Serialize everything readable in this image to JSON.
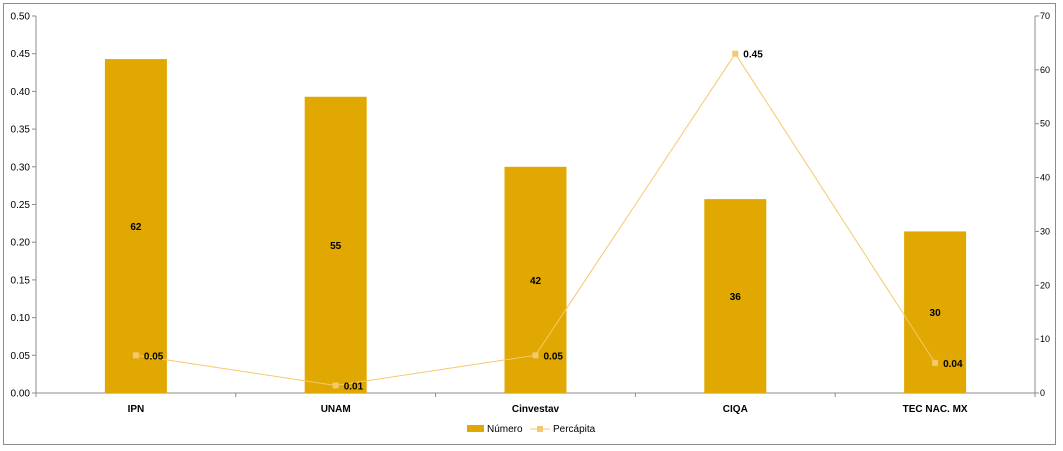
{
  "chart_data": {
    "type": "bar",
    "categories": [
      "IPN",
      "UNAM",
      "Cinvestav",
      "CIQA",
      "TEC NAC. MX"
    ],
    "series": [
      {
        "name": "Número",
        "type": "bar",
        "axis": "right",
        "values": [
          62,
          55,
          42,
          36,
          30
        ],
        "color": "#E0A800"
      },
      {
        "name": "Percápita",
        "type": "line",
        "axis": "left",
        "values": [
          0.05,
          0.01,
          0.05,
          0.45,
          0.04
        ],
        "color": "#F5C86E"
      }
    ],
    "bar_labels": [
      "62",
      "55",
      "42",
      "36",
      "30"
    ],
    "line_labels": [
      "0.05",
      "0.01",
      "0.05",
      "0.45",
      "0.04"
    ],
    "y_left": {
      "ylim": [
        0,
        0.5
      ],
      "ticks": [
        0,
        0.05,
        0.1,
        0.15,
        0.2,
        0.25,
        0.3,
        0.35,
        0.4,
        0.45,
        0.5
      ],
      "tick_labels": [
        "0.00",
        "0.05",
        "0.10",
        "0.15",
        "0.20",
        "0.25",
        "0.30",
        "0.35",
        "0.40",
        "0.45",
        "0.50"
      ]
    },
    "y_right": {
      "ylim": [
        0,
        70
      ],
      "ticks": [
        0,
        10,
        20,
        30,
        40,
        50,
        60,
        70
      ],
      "tick_labels": [
        "0",
        "10",
        "20",
        "30",
        "40",
        "50",
        "60",
        "70"
      ]
    },
    "grid": false,
    "legend": {
      "position": "bottom",
      "entries": [
        "Número",
        "Percápita"
      ]
    },
    "title": "",
    "xlabel": "",
    "ylabel": ""
  }
}
